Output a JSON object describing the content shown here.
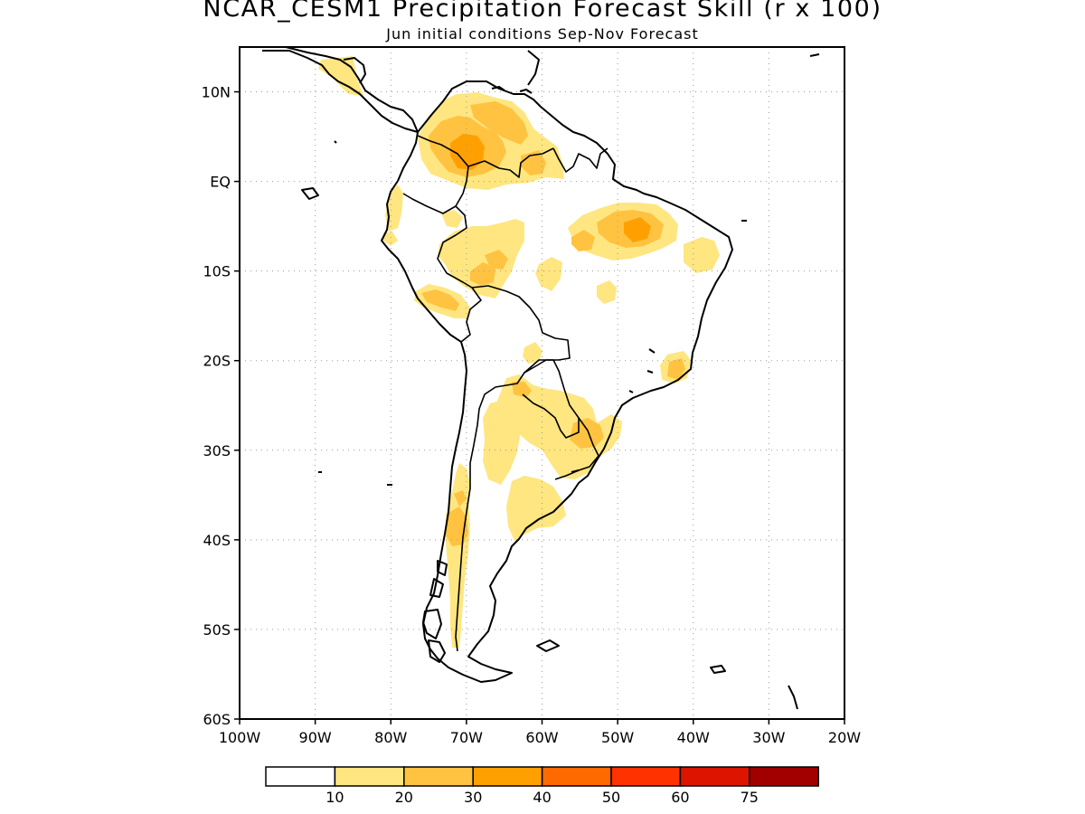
{
  "header": {
    "title": "NCAR_CESM1 Precipitation Forecast Skill (r x 100)",
    "subtitle": "Jun initial conditions  Sep-Nov Forecast"
  },
  "map": {
    "region": "South America",
    "lon_range": [
      -100,
      -20
    ],
    "lat_range": [
      -60,
      15
    ],
    "lat_ticks": [
      {
        "value": 10,
        "label": "10N"
      },
      {
        "value": 0,
        "label": "EQ"
      },
      {
        "value": -10,
        "label": "10S"
      },
      {
        "value": -20,
        "label": "20S"
      },
      {
        "value": -30,
        "label": "30S"
      },
      {
        "value": -40,
        "label": "40S"
      },
      {
        "value": -50,
        "label": "50S"
      },
      {
        "value": -60,
        "label": "60S"
      }
    ],
    "lon_ticks": [
      {
        "value": -100,
        "label": "100W"
      },
      {
        "value": -90,
        "label": "90W"
      },
      {
        "value": -80,
        "label": "80W"
      },
      {
        "value": -70,
        "label": "70W"
      },
      {
        "value": -60,
        "label": "60W"
      },
      {
        "value": -50,
        "label": "50W"
      },
      {
        "value": -40,
        "label": "40W"
      },
      {
        "value": -30,
        "label": "30W"
      },
      {
        "value": -20,
        "label": "20W"
      }
    ],
    "gridlines": "dotted"
  },
  "legend": {
    "labels": [
      "10",
      "20",
      "30",
      "40",
      "50",
      "60",
      "75"
    ],
    "colors": [
      "#ffffff",
      "#ffe680",
      "#ffc341",
      "#ffa000",
      "#ff6a00",
      "#ff3200",
      "#dc1400",
      "#a00000"
    ]
  },
  "colors": {
    "coast": "#000000",
    "grid": "#9a9a9a"
  }
}
